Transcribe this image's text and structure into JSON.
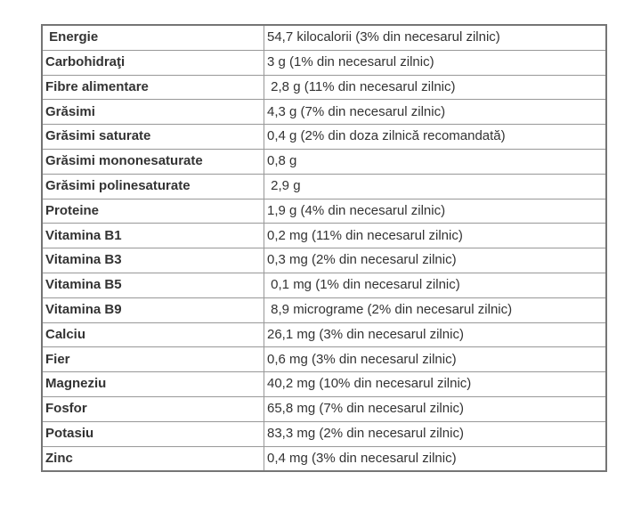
{
  "page": {
    "background_color": "#ffffff"
  },
  "table": {
    "description": "nutrition-facts-table",
    "language": "ro",
    "columns": [
      "nutrient",
      "value"
    ],
    "colors": {
      "outer_border": "#757575",
      "inner_border": "#989898",
      "label_text": "#2e2e2e",
      "value_text": "#3d3d3d"
    },
    "rows": [
      {
        "label": " Energie",
        "value": "54,7 kilocalorii (3% din necesarul zilnic)"
      },
      {
        "label": "Carbohidraţi",
        "value": "3 g (1% din necesarul zilnic)"
      },
      {
        "label": "Fibre alimentare",
        "value": " 2,8 g (11% din necesarul zilnic)"
      },
      {
        "label": "Grăsimi",
        "value": "4,3 g (7% din necesarul zilnic)"
      },
      {
        "label": "Grăsimi saturate",
        "value": "0,4 g (2% din doza zilnică recomandată)"
      },
      {
        "label": "Grăsimi mononesaturate",
        "value": "0,8 g"
      },
      {
        "label": "Grăsimi polinesaturate",
        "value": " 2,9 g"
      },
      {
        "label": "Proteine",
        "value": "1,9 g (4% din necesarul zilnic)"
      },
      {
        "label": "Vitamina B1",
        "value": "0,2 mg (11% din necesarul zilnic)"
      },
      {
        "label": "Vitamina B3",
        "value": "0,3 mg (2% din necesarul zilnic)"
      },
      {
        "label": "Vitamina B5",
        "value": " 0,1 mg (1% din necesarul zilnic)"
      },
      {
        "label": "Vitamina B9",
        "value": " 8,9 micrograme (2% din necesarul zilnic)"
      },
      {
        "label": "Calciu",
        "value": "26,1 mg (3% din necesarul zilnic)"
      },
      {
        "label": "Fier",
        "value": "0,6 mg (3% din necesarul zilnic)"
      },
      {
        "label": "Magneziu",
        "value": "40,2 mg (10% din necesarul zilnic)"
      },
      {
        "label": "Fosfor",
        "value": "65,8 mg (7% din necesarul zilnic)"
      },
      {
        "label": "Potasiu",
        "value": "83,3 mg (2% din necesarul zilnic)"
      },
      {
        "label": "Zinc",
        "value": "0,4 mg (3% din necesarul zilnic)"
      }
    ]
  }
}
